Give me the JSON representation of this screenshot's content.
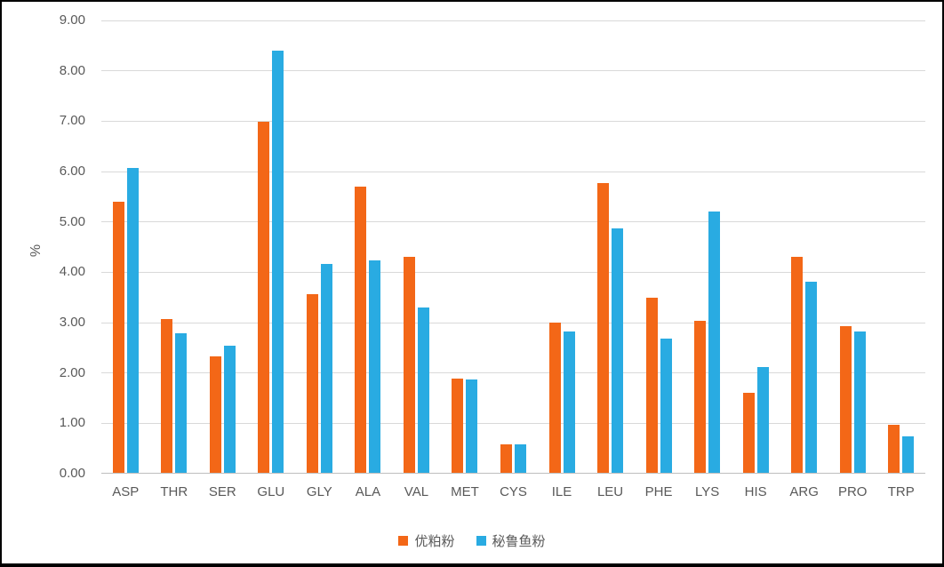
{
  "chart_data": {
    "type": "bar",
    "title": "",
    "ylabel": "%",
    "xlabel": "",
    "ylim": [
      0,
      9
    ],
    "ytick_step": 1,
    "ytick_decimals": 2,
    "grid": true,
    "legend_position": "bottom",
    "categories": [
      "ASP",
      "THR",
      "SER",
      "GLU",
      "GLY",
      "ALA",
      "VAL",
      "MET",
      "CYS",
      "ILE",
      "LEU",
      "PHE",
      "LYS",
      "HIS",
      "ARG",
      "PRO",
      "TRP"
    ],
    "series": [
      {
        "name": "优粕粉",
        "color": "#F36717",
        "values": [
          5.38,
          3.06,
          2.31,
          6.97,
          3.54,
          5.68,
          4.28,
          1.87,
          0.57,
          2.99,
          5.76,
          3.47,
          3.02,
          1.58,
          4.28,
          2.92,
          0.96
        ]
      },
      {
        "name": "秘鲁鱼粉",
        "color": "#29ABE2",
        "values": [
          6.05,
          2.77,
          2.52,
          8.38,
          4.14,
          4.21,
          3.29,
          1.85,
          0.56,
          2.8,
          4.86,
          2.66,
          5.18,
          2.1,
          3.8,
          2.8,
          0.72
        ]
      }
    ]
  },
  "colors": {
    "background": "#FFFFFF",
    "border": "#000000",
    "gridline": "#D9D9D9",
    "axis_line": "#BFBFBF",
    "text": "#595959"
  }
}
